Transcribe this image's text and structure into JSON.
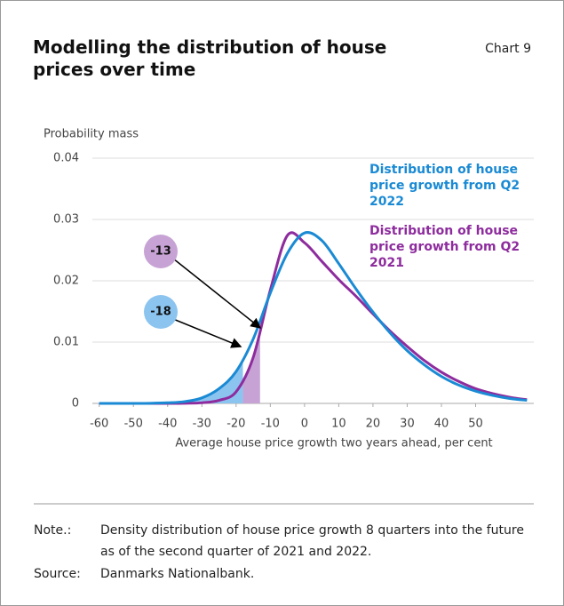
{
  "chart_number": "Chart 9",
  "chart_data": {
    "type": "line",
    "title": "Modelling the distribution of house prices over time",
    "y_label": "Probability mass",
    "x_label": "Average house price growth two years ahead, per cent",
    "x": [
      -60,
      -55,
      -50,
      -45,
      -40,
      -35,
      -30,
      -25,
      -20,
      -15,
      -10,
      -5,
      0,
      5,
      10,
      15,
      20,
      25,
      30,
      35,
      40,
      45,
      50,
      55,
      60,
      65
    ],
    "series": [
      {
        "name": "Distribution of house price growth from Q2 2022",
        "color": "#1a8ad4",
        "values": [
          0,
          0,
          0,
          2e-05,
          0.0001,
          0.0003,
          0.0009,
          0.0024,
          0.0052,
          0.0105,
          0.018,
          0.0245,
          0.0278,
          0.0266,
          0.0228,
          0.0187,
          0.0149,
          0.0115,
          0.0086,
          0.0063,
          0.0044,
          0.003,
          0.002,
          0.0013,
          0.0008,
          0.0005
        ]
      },
      {
        "name": "Distribution of house price growth from Q2 2021",
        "color": "#8e2c9e",
        "values": [
          0,
          0,
          0,
          0,
          0,
          2e-05,
          0.0001,
          0.0005,
          0.0019,
          0.0075,
          0.0185,
          0.0274,
          0.0262,
          0.0232,
          0.0202,
          0.0175,
          0.0146,
          0.0118,
          0.0093,
          0.007,
          0.0051,
          0.0036,
          0.0024,
          0.0016,
          0.001,
          0.0006
        ]
      }
    ],
    "annotations": [
      {
        "value": -13,
        "series": 1,
        "color": "#c7a3d5"
      },
      {
        "value": -18,
        "series": 0,
        "color": "#8cc4f0"
      }
    ],
    "xlim": [
      -62,
      67
    ],
    "xticks": [
      -60,
      -50,
      -40,
      -30,
      -20,
      -10,
      0,
      10,
      20,
      30,
      40,
      50
    ],
    "ylim": [
      0,
      0.04
    ],
    "yticks": [
      0,
      0.01,
      0.02,
      0.03,
      0.04
    ],
    "grid": true
  },
  "footer": {
    "note_label": "Note.:",
    "note": "Density distribution of house price growth 8 quarters into the future as of the second quarter of 2021 and 2022.",
    "source_label": "Source:",
    "source": "Danmarks Nationalbank."
  }
}
